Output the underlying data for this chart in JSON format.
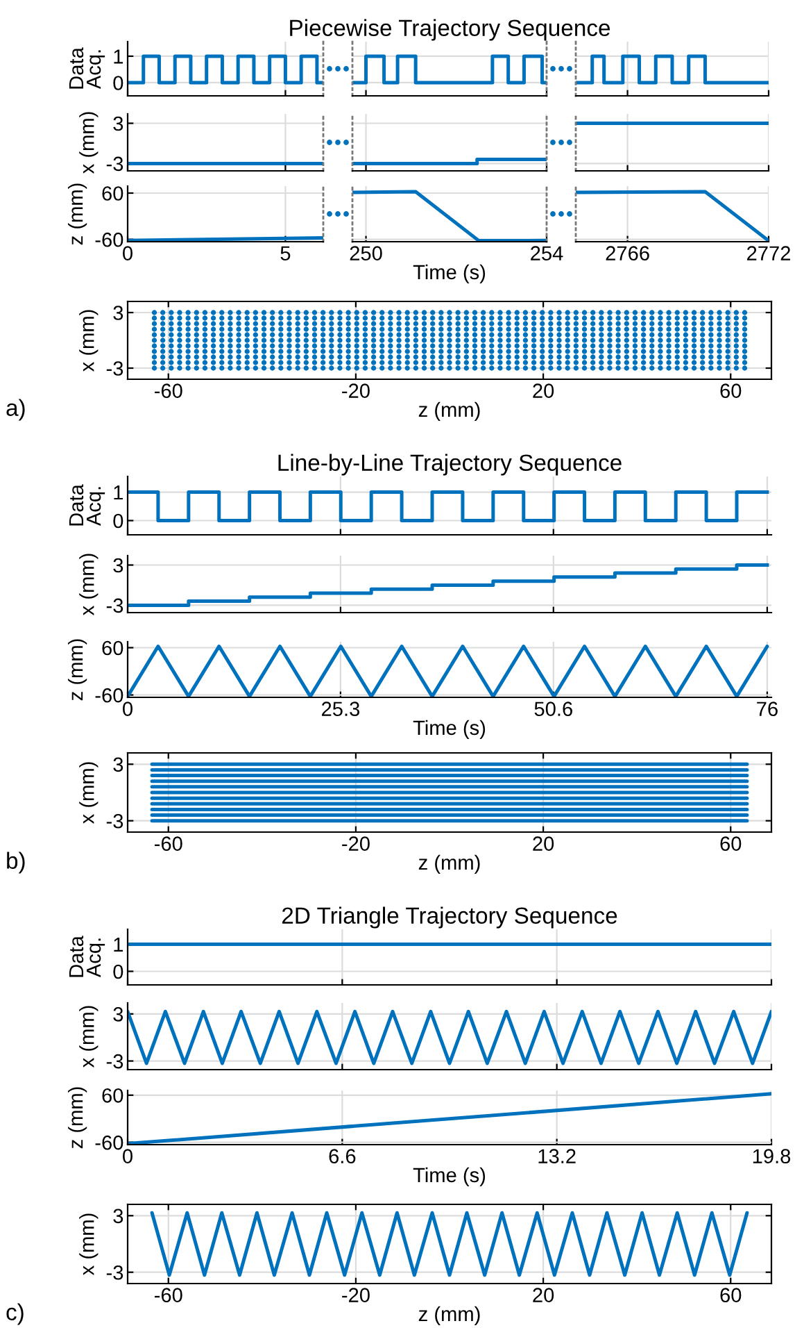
{
  "chart_data": [
    {
      "type": "step",
      "ylabel": "Data Acq.",
      "xlim": [
        0,
        6.2
      ],
      "xticks": [
        0,
        5
      ],
      "ylim": [
        -0.5,
        1.55
      ],
      "yticks": [
        0,
        1
      ],
      "grid": true,
      "tick_labels": "y",
      "series": [
        {
          "color": "#0072bd",
          "x": [
            0,
            0.5,
            1,
            1.5,
            2,
            2.5,
            3,
            3.5,
            4,
            4.5,
            5,
            5.5,
            6,
            6.2
          ],
          "values": [
            0,
            1,
            0,
            1,
            0,
            1,
            0,
            1,
            0,
            1,
            0,
            1,
            0,
            0
          ]
        }
      ]
    },
    {
      "type": "step",
      "title": "Piecewise Trajectory Sequence",
      "xlim": [
        249.7,
        254
      ],
      "xticks": [
        250,
        254
      ],
      "ylim": [
        -0.5,
        1.55
      ],
      "yticks": [
        0,
        1
      ],
      "grid": true,
      "tick_labels": false,
      "series": [
        {
          "color": "#0072bd",
          "x": [
            249.7,
            250,
            250.4,
            250.7,
            251.1,
            252.8,
            253.15,
            253.5,
            253.9,
            254
          ],
          "values": [
            0,
            1,
            0,
            1,
            0,
            1,
            0,
            1,
            0,
            0
          ]
        }
      ]
    },
    {
      "type": "step",
      "xlim": [
        2763.8,
        2772
      ],
      "xticks": [
        2766,
        2772
      ],
      "ylim": [
        -0.5,
        1.55
      ],
      "yticks": [
        0,
        1
      ],
      "grid": true,
      "tick_labels": false,
      "series": [
        {
          "color": "#0072bd",
          "x": [
            2763.8,
            2764.5,
            2765,
            2765.8,
            2766.5,
            2767.2,
            2767.9,
            2768.6,
            2769.3,
            2772
          ],
          "values": [
            0,
            1,
            0,
            1,
            0,
            1,
            0,
            1,
            0,
            0
          ]
        }
      ]
    },
    {
      "type": "line",
      "ylabel": "x (mm)",
      "xlim": [
        0,
        6.2
      ],
      "xticks": [
        0,
        5
      ],
      "ylim": [
        -4.1,
        4.4
      ],
      "yticks": [
        -3,
        3
      ],
      "grid": true,
      "tick_labels": "y",
      "series": [
        {
          "color": "#0072bd",
          "x": [
            0,
            6.2
          ],
          "values": [
            -3,
            -3
          ]
        }
      ]
    },
    {
      "type": "step",
      "xlim": [
        249.7,
        254
      ],
      "xticks": [
        250,
        254
      ],
      "ylim": [
        -4.1,
        4.4
      ],
      "yticks": [
        -3,
        3
      ],
      "grid": true,
      "tick_labels": false,
      "series": [
        {
          "color": "#0072bd",
          "x": [
            249.7,
            252.46,
            254
          ],
          "values": [
            -3,
            -2.4,
            -2.4
          ]
        }
      ]
    },
    {
      "type": "line",
      "xlim": [
        2763.8,
        2772
      ],
      "xticks": [
        2766,
        2772
      ],
      "ylim": [
        -4.1,
        4.4
      ],
      "yticks": [
        -3,
        3
      ],
      "grid": true,
      "tick_labels": false,
      "series": [
        {
          "color": "#0072bd",
          "x": [
            2763.8,
            2772
          ],
          "values": [
            3,
            3
          ]
        }
      ]
    },
    {
      "type": "line",
      "ylabel": "z (mm)",
      "xlim": [
        0,
        6.2
      ],
      "xticks": [
        0,
        5
      ],
      "ylim": [
        -66,
        78
      ],
      "yticks": [
        -60,
        60
      ],
      "grid": true,
      "series": [
        {
          "color": "#0072bd",
          "x": [
            0,
            6.2
          ],
          "values": [
            -63,
            -56
          ]
        }
      ]
    },
    {
      "type": "line",
      "xlabel": "Time (s)",
      "xlim": [
        249.7,
        254
      ],
      "xticks": [
        250,
        254
      ],
      "ylim": [
        -66,
        78
      ],
      "yticks": [
        -60,
        60
      ],
      "grid": true,
      "tick_labels": "x",
      "series": [
        {
          "color": "#0072bd",
          "x": [
            249.7,
            251.1,
            252.5,
            254
          ],
          "values": [
            62,
            63.5,
            -63.5,
            -63
          ]
        }
      ]
    },
    {
      "type": "line",
      "xlim": [
        2763.8,
        2772
      ],
      "xticks": [
        2766,
        2772
      ],
      "ylim": [
        -66,
        78
      ],
      "yticks": [
        -60,
        60
      ],
      "grid": true,
      "tick_labels": "x",
      "series": [
        {
          "color": "#0072bd",
          "x": [
            2763.8,
            2769.3,
            2772
          ],
          "values": [
            62,
            63.5,
            -63.5
          ]
        }
      ]
    },
    {
      "type": "scatter",
      "marker": "circle",
      "xlabel": "z (mm)",
      "ylabel": "x (mm)",
      "xlim": [
        -68.7,
        68.7
      ],
      "xticks": [
        -60,
        -20,
        20,
        60
      ],
      "ylim": [
        -4.2,
        4.2
      ],
      "yticks": [
        -3,
        3
      ],
      "grid": true,
      "annotations": [
        "a)"
      ],
      "x": [
        -63,
        -61.2,
        -59.4,
        -57.6,
        -55.8,
        -54,
        -52.2,
        -50.4,
        -48.6,
        -46.8,
        -45,
        -43.2,
        -41.4,
        -39.6,
        -37.8,
        -36,
        -34.2,
        -32.4,
        -30.6,
        -28.8,
        -27,
        -25.2,
        -23.4,
        -21.6,
        -19.8,
        -18,
        -16.2,
        -14.4,
        -12.6,
        -10.8,
        -9,
        -7.2,
        -5.4,
        -3.6,
        -1.8,
        0,
        1.8,
        3.6,
        5.4,
        7.2,
        9,
        10.8,
        12.6,
        14.4,
        16.2,
        18,
        19.8,
        21.6,
        23.4,
        25.2,
        27,
        28.8,
        30.6,
        32.4,
        34.2,
        36,
        37.8,
        39.6,
        41.4,
        43.2,
        45,
        46.8,
        48.6,
        50.4,
        52.2,
        54,
        55.8,
        57.6,
        59.4,
        61.2,
        63
      ],
      "series": [
        {
          "color": "#0072bd",
          "values": [
            -3,
            -3,
            -3,
            -3,
            -3,
            -3,
            -3,
            -3,
            -3,
            -3,
            -3,
            -3,
            -3,
            -3,
            -3,
            -3,
            -3,
            -3,
            -3,
            -3,
            -3,
            -3,
            -3,
            -3,
            -3,
            -3,
            -3,
            -3,
            -3,
            -3,
            -3,
            -3,
            -3,
            -3,
            -3,
            -3,
            -3,
            -3,
            -3,
            -3,
            -3,
            -3,
            -3,
            -3,
            -3,
            -3,
            -3,
            -3,
            -3,
            -3,
            -3,
            -3,
            -3,
            -3,
            -3,
            -3,
            -3,
            -3,
            -3,
            -3,
            -3,
            -3,
            -3,
            -3,
            -3,
            -3,
            -3,
            -3,
            -3,
            -3,
            -3
          ]
        },
        {
          "color": "#0072bd",
          "values": [
            -2.4,
            -2.4,
            -2.4,
            -2.4,
            -2.4,
            -2.4,
            -2.4,
            -2.4,
            -2.4,
            -2.4,
            -2.4,
            -2.4,
            -2.4,
            -2.4,
            -2.4,
            -2.4,
            -2.4,
            -2.4,
            -2.4,
            -2.4,
            -2.4,
            -2.4,
            -2.4,
            -2.4,
            -2.4,
            -2.4,
            -2.4,
            -2.4,
            -2.4,
            -2.4,
            -2.4,
            -2.4,
            -2.4,
            -2.4,
            -2.4,
            -2.4,
            -2.4,
            -2.4,
            -2.4,
            -2.4,
            -2.4,
            -2.4,
            -2.4,
            -2.4,
            -2.4,
            -2.4,
            -2.4,
            -2.4,
            -2.4,
            -2.4,
            -2.4,
            -2.4,
            -2.4,
            -2.4,
            -2.4,
            -2.4,
            -2.4,
            -2.4,
            -2.4,
            -2.4,
            -2.4,
            -2.4,
            -2.4,
            -2.4,
            -2.4,
            -2.4,
            -2.4,
            -2.4,
            -2.4,
            -2.4,
            -2.4
          ]
        },
        {
          "color": "#0072bd",
          "values": [
            -1.8,
            -1.8,
            -1.8,
            -1.8,
            -1.8,
            -1.8,
            -1.8,
            -1.8,
            -1.8,
            -1.8,
            -1.8,
            -1.8,
            -1.8,
            -1.8,
            -1.8,
            -1.8,
            -1.8,
            -1.8,
            -1.8,
            -1.8,
            -1.8,
            -1.8,
            -1.8,
            -1.8,
            -1.8,
            -1.8,
            -1.8,
            -1.8,
            -1.8,
            -1.8,
            -1.8,
            -1.8,
            -1.8,
            -1.8,
            -1.8,
            -1.8,
            -1.8,
            -1.8,
            -1.8,
            -1.8,
            -1.8,
            -1.8,
            -1.8,
            -1.8,
            -1.8,
            -1.8,
            -1.8,
            -1.8,
            -1.8,
            -1.8,
            -1.8,
            -1.8,
            -1.8,
            -1.8,
            -1.8,
            -1.8,
            -1.8,
            -1.8,
            -1.8,
            -1.8,
            -1.8,
            -1.8,
            -1.8,
            -1.8,
            -1.8,
            -1.8,
            -1.8,
            -1.8,
            -1.8,
            -1.8,
            -1.8
          ]
        },
        {
          "color": "#0072bd",
          "values": [
            -1.2,
            -1.2,
            -1.2,
            -1.2,
            -1.2,
            -1.2,
            -1.2,
            -1.2,
            -1.2,
            -1.2,
            -1.2,
            -1.2,
            -1.2,
            -1.2,
            -1.2,
            -1.2,
            -1.2,
            -1.2,
            -1.2,
            -1.2,
            -1.2,
            -1.2,
            -1.2,
            -1.2,
            -1.2,
            -1.2,
            -1.2,
            -1.2,
            -1.2,
            -1.2,
            -1.2,
            -1.2,
            -1.2,
            -1.2,
            -1.2,
            -1.2,
            -1.2,
            -1.2,
            -1.2,
            -1.2,
            -1.2,
            -1.2,
            -1.2,
            -1.2,
            -1.2,
            -1.2,
            -1.2,
            -1.2,
            -1.2,
            -1.2,
            -1.2,
            -1.2,
            -1.2,
            -1.2,
            -1.2,
            -1.2,
            -1.2,
            -1.2,
            -1.2,
            -1.2,
            -1.2,
            -1.2,
            -1.2,
            -1.2,
            -1.2,
            -1.2,
            -1.2,
            -1.2,
            -1.2,
            -1.2,
            -1.2
          ]
        },
        {
          "color": "#0072bd",
          "values": [
            -0.6,
            -0.6,
            -0.6,
            -0.6,
            -0.6,
            -0.6,
            -0.6,
            -0.6,
            -0.6,
            -0.6,
            -0.6,
            -0.6,
            -0.6,
            -0.6,
            -0.6,
            -0.6,
            -0.6,
            -0.6,
            -0.6,
            -0.6,
            -0.6,
            -0.6,
            -0.6,
            -0.6,
            -0.6,
            -0.6,
            -0.6,
            -0.6,
            -0.6,
            -0.6,
            -0.6,
            -0.6,
            -0.6,
            -0.6,
            -0.6,
            -0.6,
            -0.6,
            -0.6,
            -0.6,
            -0.6,
            -0.6,
            -0.6,
            -0.6,
            -0.6,
            -0.6,
            -0.6,
            -0.6,
            -0.6,
            -0.6,
            -0.6,
            -0.6,
            -0.6,
            -0.6,
            -0.6,
            -0.6,
            -0.6,
            -0.6,
            -0.6,
            -0.6,
            -0.6,
            -0.6,
            -0.6,
            -0.6,
            -0.6,
            -0.6,
            -0.6,
            -0.6,
            -0.6,
            -0.6,
            -0.6,
            -0.6
          ]
        },
        {
          "color": "#0072bd",
          "values": [
            0,
            0,
            0,
            0,
            0,
            0,
            0,
            0,
            0,
            0,
            0,
            0,
            0,
            0,
            0,
            0,
            0,
            0,
            0,
            0,
            0,
            0,
            0,
            0,
            0,
            0,
            0,
            0,
            0,
            0,
            0,
            0,
            0,
            0,
            0,
            0,
            0,
            0,
            0,
            0,
            0,
            0,
            0,
            0,
            0,
            0,
            0,
            0,
            0,
            0,
            0,
            0,
            0,
            0,
            0,
            0,
            0,
            0,
            0,
            0,
            0,
            0,
            0,
            0,
            0,
            0,
            0,
            0,
            0,
            0,
            0
          ]
        },
        {
          "color": "#0072bd",
          "values": [
            0.6,
            0.6,
            0.6,
            0.6,
            0.6,
            0.6,
            0.6,
            0.6,
            0.6,
            0.6,
            0.6,
            0.6,
            0.6,
            0.6,
            0.6,
            0.6,
            0.6,
            0.6,
            0.6,
            0.6,
            0.6,
            0.6,
            0.6,
            0.6,
            0.6,
            0.6,
            0.6,
            0.6,
            0.6,
            0.6,
            0.6,
            0.6,
            0.6,
            0.6,
            0.6,
            0.6,
            0.6,
            0.6,
            0.6,
            0.6,
            0.6,
            0.6,
            0.6,
            0.6,
            0.6,
            0.6,
            0.6,
            0.6,
            0.6,
            0.6,
            0.6,
            0.6,
            0.6,
            0.6,
            0.6,
            0.6,
            0.6,
            0.6,
            0.6,
            0.6,
            0.6,
            0.6,
            0.6,
            0.6,
            0.6,
            0.6,
            0.6,
            0.6,
            0.6,
            0.6,
            0.6
          ]
        },
        {
          "color": "#0072bd",
          "values": [
            1.2,
            1.2,
            1.2,
            1.2,
            1.2,
            1.2,
            1.2,
            1.2,
            1.2,
            1.2,
            1.2,
            1.2,
            1.2,
            1.2,
            1.2,
            1.2,
            1.2,
            1.2,
            1.2,
            1.2,
            1.2,
            1.2,
            1.2,
            1.2,
            1.2,
            1.2,
            1.2,
            1.2,
            1.2,
            1.2,
            1.2,
            1.2,
            1.2,
            1.2,
            1.2,
            1.2,
            1.2,
            1.2,
            1.2,
            1.2,
            1.2,
            1.2,
            1.2,
            1.2,
            1.2,
            1.2,
            1.2,
            1.2,
            1.2,
            1.2,
            1.2,
            1.2,
            1.2,
            1.2,
            1.2,
            1.2,
            1.2,
            1.2,
            1.2,
            1.2,
            1.2,
            1.2,
            1.2,
            1.2,
            1.2,
            1.2,
            1.2,
            1.2,
            1.2,
            1.2,
            1.2
          ]
        },
        {
          "color": "#0072bd",
          "values": [
            1.8,
            1.8,
            1.8,
            1.8,
            1.8,
            1.8,
            1.8,
            1.8,
            1.8,
            1.8,
            1.8,
            1.8,
            1.8,
            1.8,
            1.8,
            1.8,
            1.8,
            1.8,
            1.8,
            1.8,
            1.8,
            1.8,
            1.8,
            1.8,
            1.8,
            1.8,
            1.8,
            1.8,
            1.8,
            1.8,
            1.8,
            1.8,
            1.8,
            1.8,
            1.8,
            1.8,
            1.8,
            1.8,
            1.8,
            1.8,
            1.8,
            1.8,
            1.8,
            1.8,
            1.8,
            1.8,
            1.8,
            1.8,
            1.8,
            1.8,
            1.8,
            1.8,
            1.8,
            1.8,
            1.8,
            1.8,
            1.8,
            1.8,
            1.8,
            1.8,
            1.8,
            1.8,
            1.8,
            1.8,
            1.8,
            1.8,
            1.8,
            1.8,
            1.8,
            1.8,
            1.8
          ]
        },
        {
          "color": "#0072bd",
          "values": [
            2.4,
            2.4,
            2.4,
            2.4,
            2.4,
            2.4,
            2.4,
            2.4,
            2.4,
            2.4,
            2.4,
            2.4,
            2.4,
            2.4,
            2.4,
            2.4,
            2.4,
            2.4,
            2.4,
            2.4,
            2.4,
            2.4,
            2.4,
            2.4,
            2.4,
            2.4,
            2.4,
            2.4,
            2.4,
            2.4,
            2.4,
            2.4,
            2.4,
            2.4,
            2.4,
            2.4,
            2.4,
            2.4,
            2.4,
            2.4,
            2.4,
            2.4,
            2.4,
            2.4,
            2.4,
            2.4,
            2.4,
            2.4,
            2.4,
            2.4,
            2.4,
            2.4,
            2.4,
            2.4,
            2.4,
            2.4,
            2.4,
            2.4,
            2.4,
            2.4,
            2.4,
            2.4,
            2.4,
            2.4,
            2.4,
            2.4,
            2.4,
            2.4,
            2.4,
            2.4,
            2.4
          ]
        },
        {
          "color": "#0072bd",
          "values": [
            3,
            3,
            3,
            3,
            3,
            3,
            3,
            3,
            3,
            3,
            3,
            3,
            3,
            3,
            3,
            3,
            3,
            3,
            3,
            3,
            3,
            3,
            3,
            3,
            3,
            3,
            3,
            3,
            3,
            3,
            3,
            3,
            3,
            3,
            3,
            3,
            3,
            3,
            3,
            3,
            3,
            3,
            3,
            3,
            3,
            3,
            3,
            3,
            3,
            3,
            3,
            3,
            3,
            3,
            3,
            3,
            3,
            3,
            3,
            3,
            3,
            3,
            3,
            3,
            3,
            3,
            3,
            3,
            3,
            3,
            3
          ]
        }
      ]
    },
    {
      "type": "step",
      "title": "Line-by-Line Trajectory Sequence",
      "ylabel": "Data Acq.",
      "xlim": [
        0,
        76.5
      ],
      "xticks": [
        0,
        25.3,
        50.6,
        76
      ],
      "ylim": [
        -0.5,
        1.55
      ],
      "yticks": [
        0,
        1
      ],
      "grid": true,
      "tick_labels": "y",
      "series": [
        {
          "color": "#0072bd",
          "x": [
            0,
            3.62,
            7.24,
            10.86,
            14.48,
            18.1,
            21.71,
            25.33,
            28.95,
            32.57,
            36.19,
            39.81,
            43.43,
            47.05,
            50.67,
            54.29,
            57.9,
            61.52,
            65.14,
            68.76,
            72.38,
            76
          ],
          "values": [
            1,
            0,
            1,
            0,
            1,
            0,
            1,
            0,
            1,
            0,
            1,
            0,
            1,
            0,
            1,
            0,
            1,
            0,
            1,
            0,
            1,
            1
          ]
        }
      ]
    },
    {
      "type": "step",
      "ylabel": "x (mm)",
      "xlim": [
        0,
        76.5
      ],
      "xticks": [
        0,
        25.3,
        50.6,
        76
      ],
      "ylim": [
        -4.1,
        4.4
      ],
      "yticks": [
        -3,
        3
      ],
      "grid": true,
      "tick_labels": "y",
      "series": [
        {
          "color": "#0072bd",
          "x": [
            0,
            7.24,
            14.48,
            21.71,
            28.95,
            36.19,
            43.43,
            50.67,
            57.9,
            65.14,
            72.38,
            76
          ],
          "values": [
            -3,
            -2.4,
            -1.8,
            -1.2,
            -0.6,
            0,
            0.6,
            1.2,
            1.8,
            2.4,
            3,
            3
          ]
        }
      ]
    },
    {
      "type": "line",
      "ylabel": "z (mm)",
      "xlabel": "Time (s)",
      "xlim": [
        0,
        76.5
      ],
      "xticks": [
        0,
        25.3,
        50.6,
        76
      ],
      "ylim": [
        -66,
        75
      ],
      "yticks": [
        -60,
        60
      ],
      "grid": true,
      "series": [
        {
          "color": "#0072bd",
          "x": [
            0,
            3.62,
            7.24,
            10.86,
            14.48,
            18.1,
            21.71,
            25.33,
            28.95,
            32.57,
            36.19,
            39.81,
            43.43,
            47.05,
            50.67,
            54.29,
            57.9,
            61.52,
            65.14,
            68.76,
            72.38,
            76
          ],
          "values": [
            -63.5,
            63.5,
            -63.5,
            63.5,
            -63.5,
            63.5,
            -63.5,
            63.5,
            -63.5,
            63.5,
            -63.5,
            63.5,
            -63.5,
            63.5,
            -63.5,
            63.5,
            -63.5,
            63.5,
            -63.5,
            63.5,
            -63.5,
            63.5
          ]
        }
      ]
    },
    {
      "type": "line",
      "xlabel": "z (mm)",
      "ylabel": "x (mm)",
      "xlim": [
        -68.7,
        68.7
      ],
      "xticks": [
        -60,
        -20,
        20,
        60
      ],
      "ylim": [
        -4.2,
        4.2
      ],
      "yticks": [
        -3,
        3
      ],
      "grid": true,
      "annotations": [
        "b)"
      ],
      "x": [
        -63.5,
        63.5
      ],
      "series": [
        {
          "color": "#0072bd",
          "values": [
            -3,
            -3
          ]
        },
        {
          "color": "#0072bd",
          "values": [
            -2.4,
            -2.4
          ]
        },
        {
          "color": "#0072bd",
          "values": [
            -1.8,
            -1.8
          ]
        },
        {
          "color": "#0072bd",
          "values": [
            -1.2,
            -1.2
          ]
        },
        {
          "color": "#0072bd",
          "values": [
            -0.6,
            -0.6
          ]
        },
        {
          "color": "#0072bd",
          "values": [
            0,
            0
          ]
        },
        {
          "color": "#0072bd",
          "values": [
            0.6,
            0.6
          ]
        },
        {
          "color": "#0072bd",
          "values": [
            1.2,
            1.2
          ]
        },
        {
          "color": "#0072bd",
          "values": [
            1.8,
            1.8
          ]
        },
        {
          "color": "#0072bd",
          "values": [
            2.4,
            2.4
          ]
        },
        {
          "color": "#0072bd",
          "values": [
            3,
            3
          ]
        }
      ]
    },
    {
      "type": "line",
      "title": "2D Triangle Trajectory Sequence",
      "ylabel": "Data Acq.",
      "xlim": [
        0,
        19.8
      ],
      "xticks": [
        0,
        6.6,
        13.2,
        19.8
      ],
      "ylim": [
        -0.5,
        1.55
      ],
      "yticks": [
        0,
        1
      ],
      "grid": true,
      "tick_labels": "y",
      "series": [
        {
          "color": "#0072bd",
          "x": [
            0,
            19.8
          ],
          "values": [
            1,
            1
          ]
        }
      ]
    },
    {
      "type": "line",
      "ylabel": "x (mm)",
      "xlim": [
        0,
        19.8
      ],
      "xticks": [
        0,
        6.6,
        13.2,
        19.8
      ],
      "ylim": [
        -4.1,
        4.4
      ],
      "yticks": [
        -3,
        3
      ],
      "grid": true,
      "tick_labels": "y",
      "series": [
        {
          "color": "#0072bd",
          "x": [
            0,
            0.58,
            1.16,
            1.75,
            2.33,
            2.91,
            3.49,
            4.08,
            4.66,
            5.24,
            5.82,
            6.41,
            6.99,
            7.57,
            8.15,
            8.74,
            9.32,
            9.9,
            10.48,
            11.06,
            11.65,
            12.23,
            12.81,
            13.39,
            13.98,
            14.56,
            15.14,
            15.72,
            16.31,
            16.89,
            17.47,
            18.05,
            18.64,
            19.22,
            19.8
          ],
          "values": [
            3.3,
            -3.3,
            3.3,
            -3.3,
            3.3,
            -3.3,
            3.3,
            -3.3,
            3.3,
            -3.3,
            3.3,
            -3.3,
            3.3,
            -3.3,
            3.3,
            -3.3,
            3.3,
            -3.3,
            3.3,
            -3.3,
            3.3,
            -3.3,
            3.3,
            -3.3,
            3.3,
            -3.3,
            3.3,
            -3.3,
            3.3,
            -3.3,
            3.3,
            -3.3,
            3.3,
            -3.3,
            3.3
          ]
        }
      ]
    },
    {
      "type": "line",
      "ylabel": "z (mm)",
      "xlabel": "Time (s)",
      "xlim": [
        0,
        19.8
      ],
      "xticks": [
        0,
        6.6,
        13.2,
        19.8
      ],
      "ylim": [
        -66,
        72
      ],
      "yticks": [
        -60,
        60
      ],
      "grid": true,
      "series": [
        {
          "color": "#0072bd",
          "x": [
            0,
            19.8
          ],
          "values": [
            -63.5,
            63.5
          ]
        }
      ]
    },
    {
      "type": "line",
      "xlabel": "z (mm)",
      "ylabel": "x (mm)",
      "xlim": [
        -68.7,
        68.7
      ],
      "xticks": [
        -60,
        -20,
        20,
        60
      ],
      "ylim": [
        -4.2,
        4.2
      ],
      "yticks": [
        -3,
        3
      ],
      "grid": true,
      "annotations": [
        "c)"
      ],
      "series": [
        {
          "color": "#0072bd",
          "x": [
            -63.5,
            -59.8,
            -56,
            -52.3,
            -48.6,
            -44.8,
            -41.1,
            -37.4,
            -33.6,
            -29.9,
            -26.2,
            -22.4,
            -18.7,
            -14.9,
            -11.2,
            -7.5,
            -3.7,
            0,
            3.7,
            7.5,
            11.2,
            14.9,
            18.7,
            22.4,
            26.2,
            29.9,
            33.6,
            37.4,
            41.1,
            44.8,
            48.6,
            52.3,
            56,
            59.8,
            63.5
          ],
          "values": [
            3.3,
            -3.3,
            3.3,
            -3.3,
            3.3,
            -3.3,
            3.3,
            -3.3,
            3.3,
            -3.3,
            3.3,
            -3.3,
            3.3,
            -3.3,
            3.3,
            -3.3,
            3.3,
            -3.3,
            3.3,
            -3.3,
            3.3,
            -3.3,
            3.3,
            -3.3,
            3.3,
            -3.3,
            3.3,
            -3.3,
            3.3,
            -3.3,
            3.3,
            -3.3,
            3.3,
            -3.3,
            3.3
          ]
        }
      ]
    }
  ]
}
